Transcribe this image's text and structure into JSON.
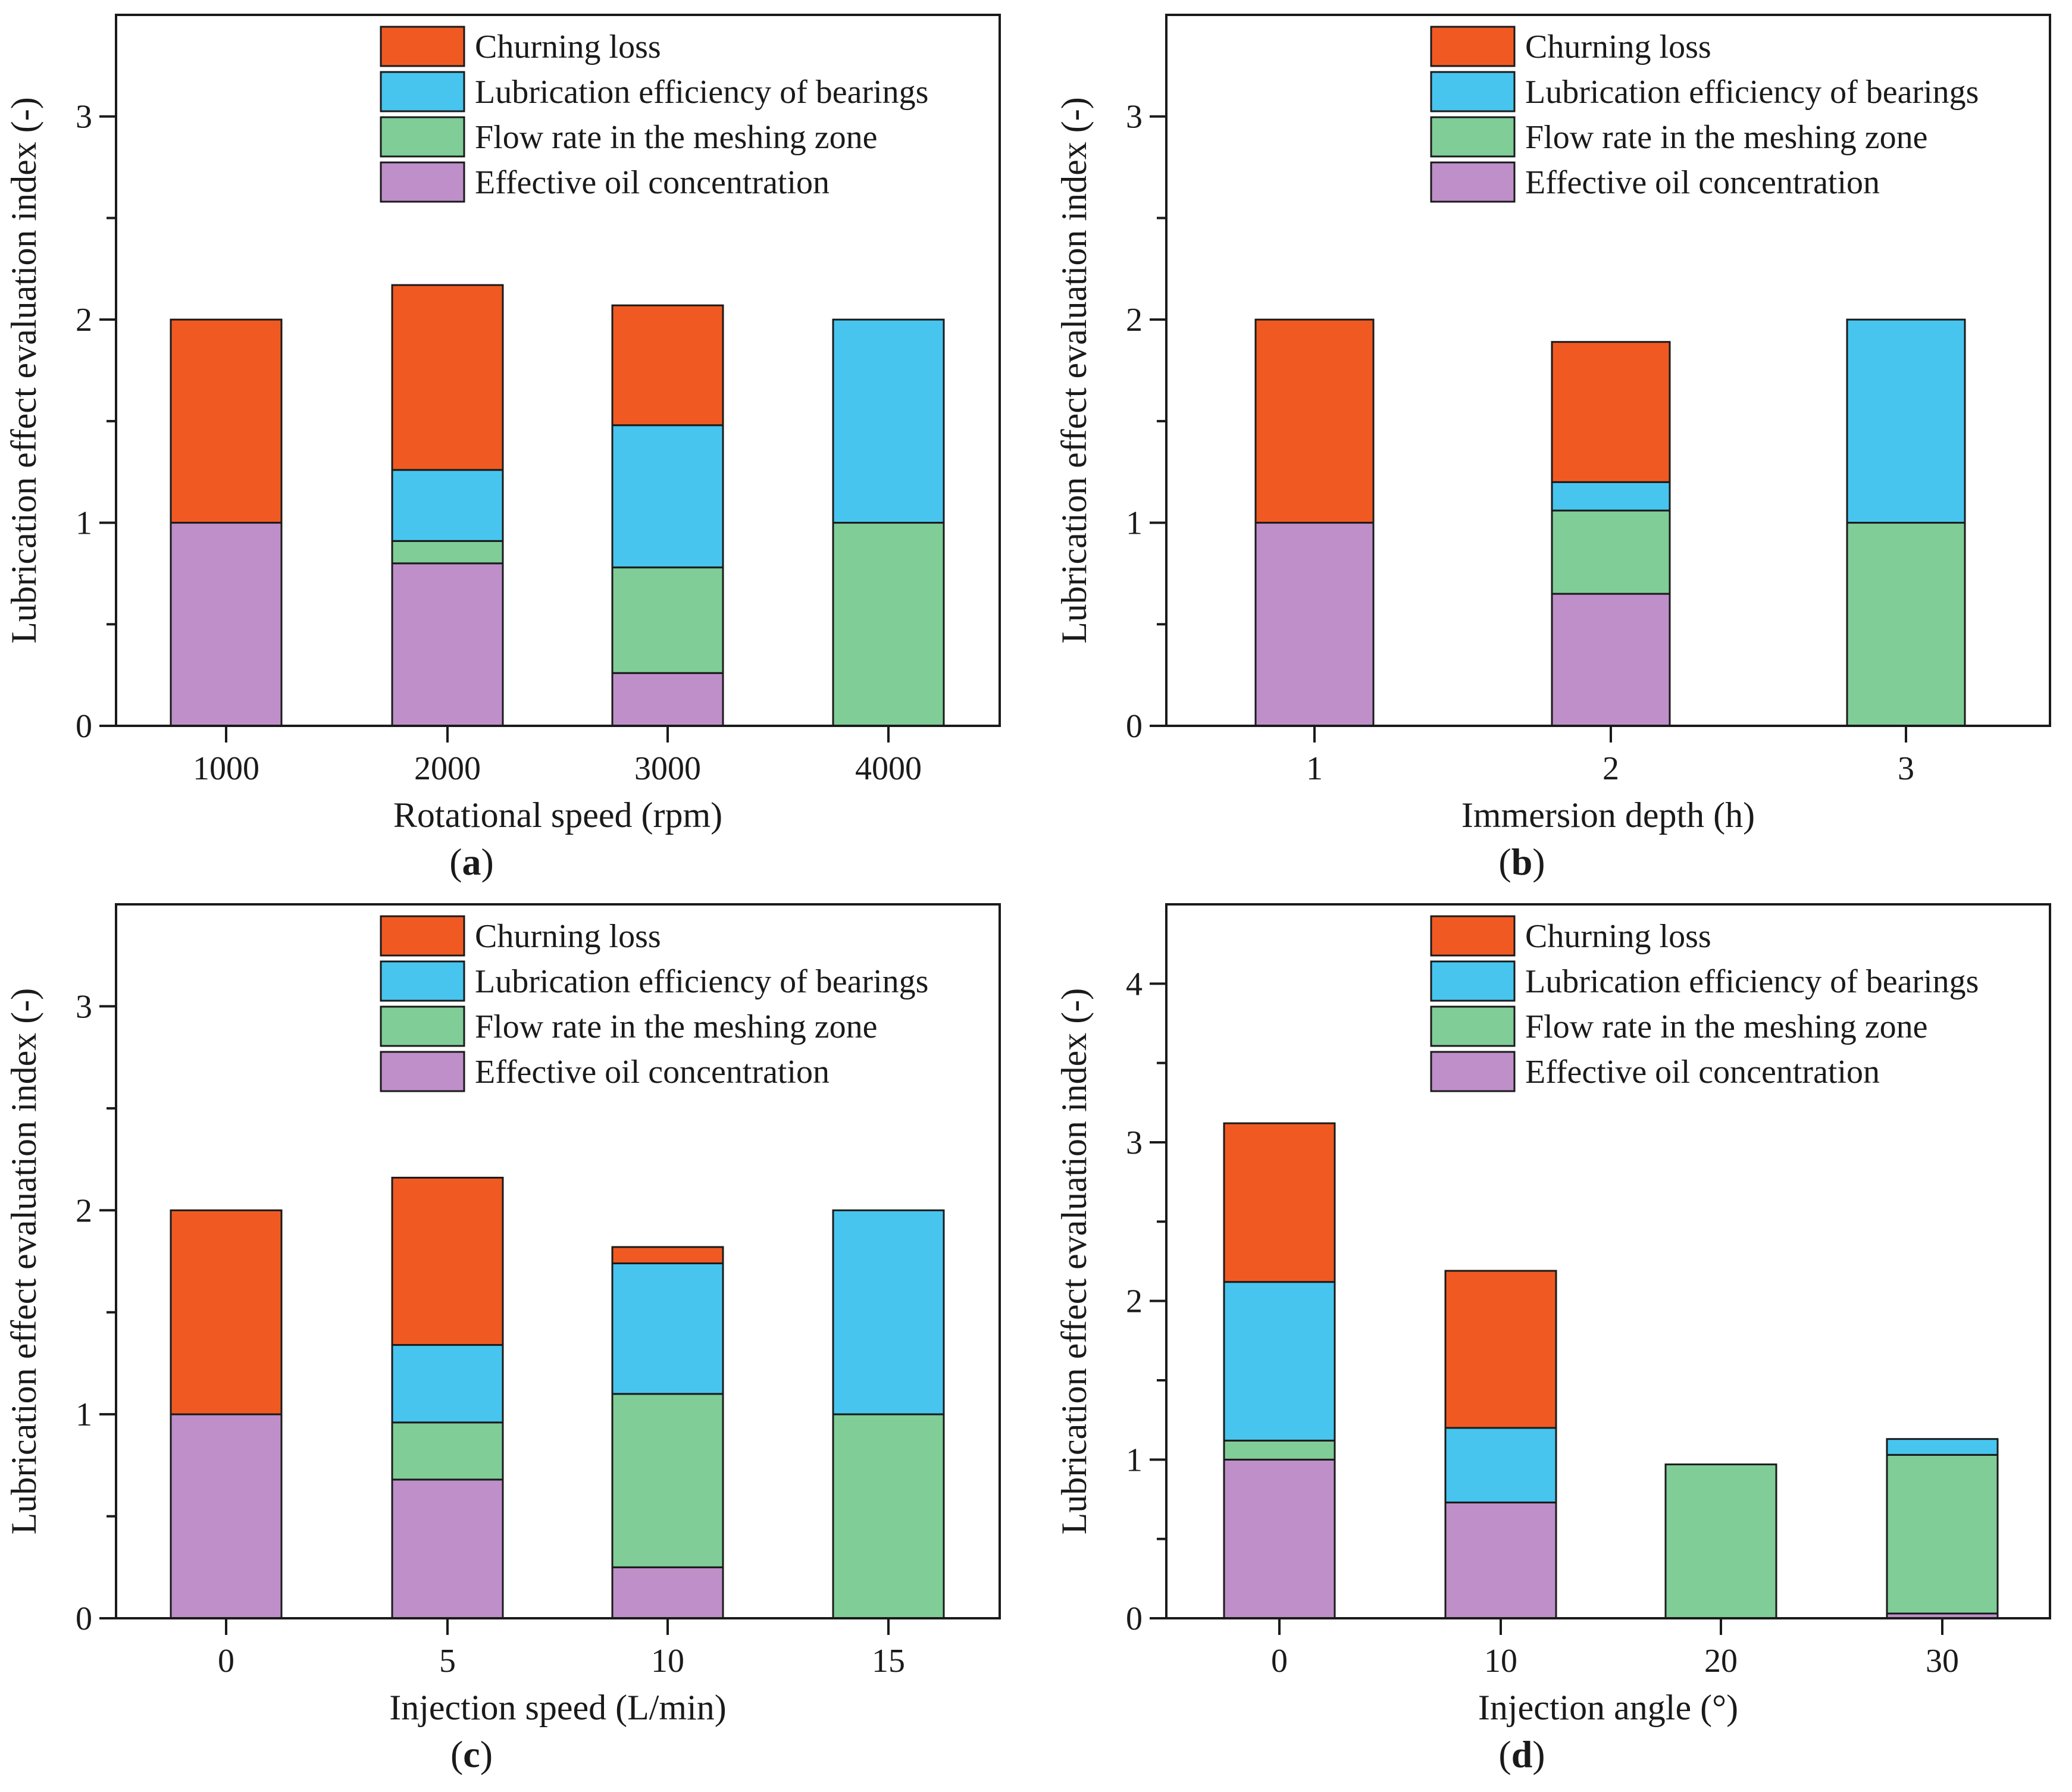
{
  "colors": {
    "Churning loss": "#f05a22",
    "Lubrication efficiency of bearings": "#47c5ee",
    "Flow rate in the meshing zone": "#80cd98",
    "Effective oil concentration": "#bf8fc9"
  },
  "chart_data": [
    {
      "type": "bar",
      "stacked": true,
      "panel_label": "a",
      "xlabel": "Rotational speed (rpm)",
      "ylabel": "Lubrication effect evaluation index (-)",
      "ylim": [
        0,
        3.5
      ],
      "yticks": [
        0,
        1,
        2,
        3
      ],
      "categories": [
        "1000",
        "2000",
        "3000",
        "4000"
      ],
      "legend": [
        "Churning loss",
        "Lubrication efficiency of bearings",
        "Flow rate in the meshing zone",
        "Effective oil concentration"
      ],
      "series": [
        {
          "name": "Effective oil concentration",
          "values": [
            1.0,
            0.8,
            0.26,
            0.0
          ]
        },
        {
          "name": "Flow rate in the meshing zone",
          "values": [
            0.0,
            0.11,
            0.52,
            1.0
          ]
        },
        {
          "name": "Lubrication efficiency of bearings",
          "values": [
            0.0,
            0.35,
            0.7,
            1.0
          ]
        },
        {
          "name": "Churning loss",
          "values": [
            1.0,
            0.91,
            0.59,
            0.0
          ]
        }
      ]
    },
    {
      "type": "bar",
      "stacked": true,
      "panel_label": "b",
      "xlabel": "Immersion depth (h)",
      "ylabel": "Lubrication effect evaluation index (-)",
      "ylim": [
        0,
        3.5
      ],
      "yticks": [
        0,
        1,
        2,
        3
      ],
      "categories": [
        "1",
        "2",
        "3"
      ],
      "legend": [
        "Churning loss",
        "Lubrication efficiency of bearings",
        "Flow rate in the meshing zone",
        "Effective oil concentration"
      ],
      "series": [
        {
          "name": "Effective oil concentration",
          "values": [
            1.0,
            0.65,
            0.0
          ]
        },
        {
          "name": "Flow rate in the meshing zone",
          "values": [
            0.0,
            0.41,
            1.0
          ]
        },
        {
          "name": "Lubrication efficiency of bearings",
          "values": [
            0.0,
            0.14,
            1.0
          ]
        },
        {
          "name": "Churning loss",
          "values": [
            1.0,
            0.69,
            0.0
          ]
        }
      ]
    },
    {
      "type": "bar",
      "stacked": true,
      "panel_label": "c",
      "xlabel": "Injection speed (L/min)",
      "ylabel": "Lubrication effect evaluation index (-)",
      "ylim": [
        0,
        3.5
      ],
      "yticks": [
        0,
        1,
        2,
        3
      ],
      "categories": [
        "0",
        "5",
        "10",
        "15"
      ],
      "legend": [
        "Churning loss",
        "Lubrication efficiency of bearings",
        "Flow rate in the meshing zone",
        "Effective oil concentration"
      ],
      "series": [
        {
          "name": "Effective oil concentration",
          "values": [
            1.0,
            0.68,
            0.25,
            0.0
          ]
        },
        {
          "name": "Flow rate in the meshing zone",
          "values": [
            0.0,
            0.28,
            0.85,
            1.0
          ]
        },
        {
          "name": "Lubrication efficiency of bearings",
          "values": [
            0.0,
            0.38,
            0.64,
            1.0
          ]
        },
        {
          "name": "Churning loss",
          "values": [
            1.0,
            0.82,
            0.08,
            0.0
          ]
        }
      ]
    },
    {
      "type": "bar",
      "stacked": true,
      "panel_label": "d",
      "xlabel": "Injection angle (°)",
      "ylabel": "Lubrication effect evaluation index (-)",
      "ylim": [
        0,
        4.5
      ],
      "yticks": [
        0,
        1,
        2,
        3,
        4
      ],
      "categories": [
        "0",
        "10",
        "20",
        "30"
      ],
      "legend": [
        "Churning loss",
        "Lubrication efficiency of bearings",
        "Flow rate in the meshing zone",
        "Effective oil concentration"
      ],
      "series": [
        {
          "name": "Effective oil concentration",
          "values": [
            1.0,
            0.73,
            0.0,
            0.03
          ]
        },
        {
          "name": "Flow rate in the meshing zone",
          "values": [
            0.12,
            0.0,
            0.97,
            1.0
          ]
        },
        {
          "name": "Lubrication efficiency of bearings",
          "values": [
            1.0,
            0.47,
            0.0,
            0.1
          ]
        },
        {
          "name": "Churning loss",
          "values": [
            1.0,
            0.99,
            0.0,
            0.0
          ]
        }
      ]
    }
  ]
}
